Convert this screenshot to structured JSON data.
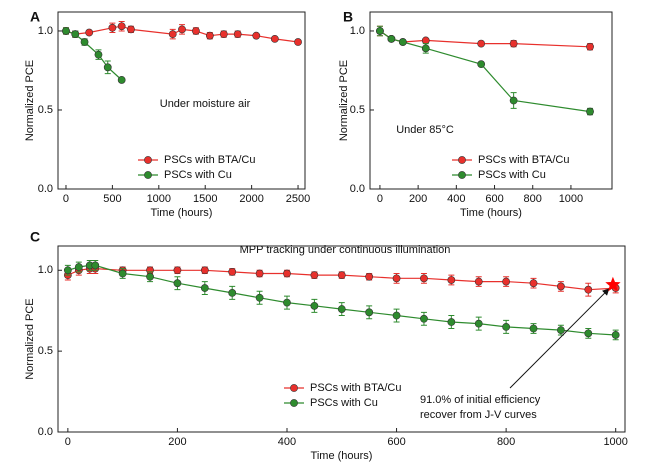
{
  "chart_data": [
    {
      "type": "line",
      "panel_label": "A",
      "note": "Under moisture air",
      "x_label": "Time (hours)",
      "y_label": "Normalized PCE",
      "xlim": [
        -86,
        2575
      ],
      "ylim": [
        0,
        1.12
      ],
      "xticks": [
        0,
        500,
        1000,
        1500,
        2000,
        2500
      ],
      "yticks": [
        {
          "value": 0,
          "label": "0.0"
        },
        {
          "value": 0.5,
          "label": "0.5"
        },
        {
          "value": 1,
          "label": "1.0"
        }
      ],
      "series": [
        {
          "name": "PSCs with BTA/Cu",
          "color": "#e8302c",
          "x": [
            0,
            100,
            250,
            500,
            600,
            700,
            1150,
            1250,
            1400,
            1550,
            1700,
            1850,
            2050,
            2250,
            2500
          ],
          "values": [
            1.0,
            0.98,
            0.99,
            1.02,
            1.03,
            1.01,
            0.98,
            1.01,
            1.0,
            0.97,
            0.98,
            0.98,
            0.97,
            0.95,
            0.93
          ],
          "errors": [
            0.02,
            0.02,
            0.01,
            0.03,
            0.03,
            0.02,
            0.03,
            0.03,
            0.02,
            0.02,
            0.02,
            0.02,
            0.01,
            0.01,
            0.01
          ]
        },
        {
          "name": "PSCs with Cu",
          "color": "#2e8b2e",
          "x": [
            0,
            100,
            200,
            350,
            450,
            600
          ],
          "values": [
            1.0,
            0.98,
            0.93,
            0.85,
            0.77,
            0.69
          ],
          "errors": [
            0.02,
            0.02,
            0.02,
            0.03,
            0.04,
            0.01
          ]
        }
      ]
    },
    {
      "type": "line",
      "panel_label": "B",
      "note": "Under 85°C",
      "x_label": "Time (hours)",
      "y_label": "Normalized PCE",
      "xlim": [
        -52,
        1215
      ],
      "ylim": [
        0,
        1.12
      ],
      "xticks": [
        0,
        200,
        400,
        600,
        800,
        1000
      ],
      "yticks": [
        {
          "value": 0,
          "label": "0.0"
        },
        {
          "value": 0.5,
          "label": "0.5"
        },
        {
          "value": 1,
          "label": "1.0"
        }
      ],
      "series": [
        {
          "name": "PSCs with BTA/Cu",
          "color": "#e8302c",
          "x": [
            0,
            60,
            120,
            240,
            530,
            700,
            1100
          ],
          "values": [
            1.0,
            0.95,
            0.93,
            0.94,
            0.92,
            0.92,
            0.9
          ],
          "errors": [
            0.03,
            0.01,
            0.01,
            0.01,
            0.01,
            0.02,
            0.02
          ]
        },
        {
          "name": "PSCs with Cu",
          "color": "#2e8b2e",
          "x": [
            0,
            60,
            120,
            240,
            530,
            700,
            1100
          ],
          "values": [
            1.0,
            0.95,
            0.93,
            0.89,
            0.79,
            0.56,
            0.49
          ],
          "errors": [
            0.03,
            0.01,
            0.01,
            0.03,
            0.01,
            0.05,
            0.02
          ]
        }
      ]
    },
    {
      "type": "line",
      "panel_label": "C",
      "title": "MPP tracking under continuous illumination",
      "x_label": "Time (hours)",
      "y_label": "Normalized PCE",
      "xlim": [
        -18,
        1017
      ],
      "ylim": [
        0,
        1.15
      ],
      "xticks": [
        0,
        200,
        400,
        600,
        800,
        1000
      ],
      "yticks": [
        {
          "value": 0,
          "label": "0.0"
        },
        {
          "value": 0.5,
          "label": "0.5"
        },
        {
          "value": 1,
          "label": "1.0"
        }
      ],
      "annotation": {
        "lines": [
          "91.0% of initial efficiency",
          "recover from J-V curves"
        ],
        "x": 995,
        "y": 0.91,
        "color": "#ff0000"
      },
      "series": [
        {
          "name": "PSCs with BTA/Cu",
          "color": "#e8302c",
          "x": [
            0,
            20,
            40,
            50,
            100,
            150,
            200,
            250,
            300,
            350,
            400,
            450,
            500,
            550,
            600,
            650,
            700,
            750,
            800,
            850,
            900,
            950,
            1000
          ],
          "values": [
            0.97,
            1.0,
            1.01,
            1.01,
            1.0,
            1.0,
            1.0,
            1.0,
            0.99,
            0.98,
            0.98,
            0.97,
            0.97,
            0.96,
            0.95,
            0.95,
            0.94,
            0.93,
            0.93,
            0.92,
            0.9,
            0.88,
            0.89
          ],
          "errors": [
            0.03,
            0.03,
            0.03,
            0.03,
            0.02,
            0.02,
            0.02,
            0.02,
            0.02,
            0.02,
            0.02,
            0.02,
            0.02,
            0.02,
            0.03,
            0.03,
            0.03,
            0.03,
            0.03,
            0.03,
            0.03,
            0.04,
            0.03
          ]
        },
        {
          "name": "PSCs with Cu",
          "color": "#2e8b2e",
          "x": [
            0,
            20,
            40,
            50,
            100,
            150,
            200,
            250,
            300,
            350,
            400,
            450,
            500,
            550,
            600,
            650,
            700,
            750,
            800,
            850,
            900,
            950,
            1000
          ],
          "values": [
            1.0,
            1.02,
            1.03,
            1.03,
            0.98,
            0.96,
            0.92,
            0.89,
            0.86,
            0.83,
            0.8,
            0.78,
            0.76,
            0.74,
            0.72,
            0.7,
            0.68,
            0.67,
            0.65,
            0.64,
            0.63,
            0.61,
            0.6
          ],
          "errors": [
            0.03,
            0.03,
            0.03,
            0.03,
            0.03,
            0.03,
            0.04,
            0.04,
            0.04,
            0.04,
            0.04,
            0.04,
            0.04,
            0.04,
            0.04,
            0.04,
            0.04,
            0.04,
            0.04,
            0.03,
            0.03,
            0.03,
            0.03
          ]
        }
      ]
    }
  ]
}
